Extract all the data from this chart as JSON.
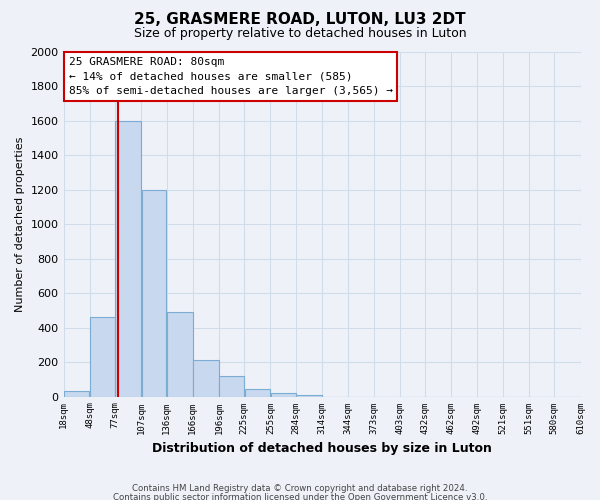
{
  "title": "25, GRASMERE ROAD, LUTON, LU3 2DT",
  "subtitle": "Size of property relative to detached houses in Luton",
  "xlabel": "Distribution of detached houses by size in Luton",
  "ylabel": "Number of detached properties",
  "bar_color": "#c8d8ee",
  "bar_edge_color": "#7bacd4",
  "vline_color": "#cc0000",
  "bin_edges": [
    18,
    48,
    77,
    107,
    136,
    166,
    196,
    225,
    255,
    284,
    314,
    344,
    373,
    403,
    432,
    462,
    492,
    521,
    551,
    580,
    610
  ],
  "bar_heights": [
    35,
    460,
    1600,
    1200,
    490,
    210,
    120,
    45,
    20,
    10,
    0,
    0,
    0,
    0,
    0,
    0,
    0,
    0,
    0,
    0
  ],
  "vline_x": 80,
  "ylim": [
    0,
    2000
  ],
  "yticks": [
    0,
    200,
    400,
    600,
    800,
    1000,
    1200,
    1400,
    1600,
    1800,
    2000
  ],
  "tick_labels": [
    "18sqm",
    "48sqm",
    "77sqm",
    "107sqm",
    "136sqm",
    "166sqm",
    "196sqm",
    "225sqm",
    "255sqm",
    "284sqm",
    "314sqm",
    "344sqm",
    "373sqm",
    "403sqm",
    "432sqm",
    "462sqm",
    "492sqm",
    "521sqm",
    "551sqm",
    "580sqm",
    "610sqm"
  ],
  "annotation_box_text": "25 GRASMERE ROAD: 80sqm\n← 14% of detached houses are smaller (585)\n85% of semi-detached houses are larger (3,565) →",
  "footnote1": "Contains HM Land Registry data © Crown copyright and database right 2024.",
  "footnote2": "Contains public sector information licensed under the Open Government Licence v3.0.",
  "grid_color": "#d0dcea",
  "background_color": "#eef2f8"
}
